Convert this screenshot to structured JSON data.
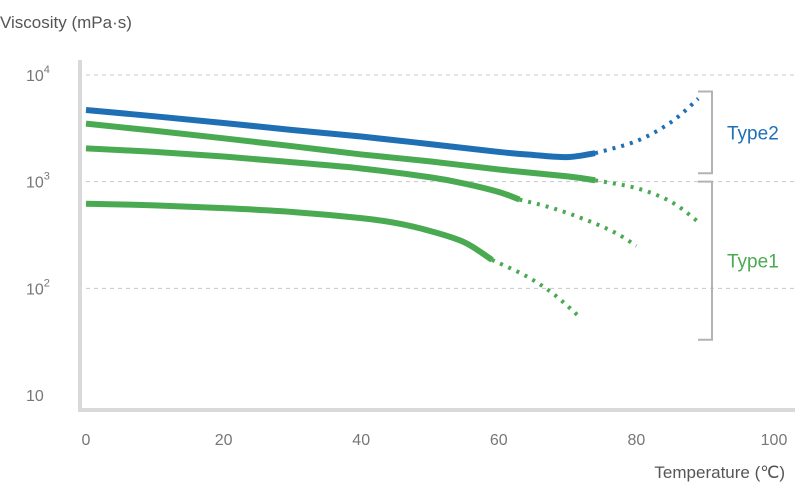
{
  "chart_data": {
    "type": "line",
    "ylabel": "Viscosity (mPa·s)",
    "xlabel": "Temperature (℃)",
    "xlim": [
      0,
      100
    ],
    "ylim_log10": [
      0.8,
      4.1
    ],
    "y_scale": "log",
    "grid": "horizontal dashed",
    "x_ticks": [
      "0",
      "20",
      "40",
      "60",
      "80",
      "100"
    ],
    "y_ticks": [
      {
        "base": "10",
        "exp": "4",
        "value": 10000
      },
      {
        "base": "10",
        "exp": "3",
        "value": 1000
      },
      {
        "base": "10",
        "exp": "2",
        "value": 100
      },
      {
        "base": "10",
        "exp": "",
        "value": 10
      }
    ],
    "colors": {
      "type2": "#1f6fb5",
      "type1": "#4aaa52"
    },
    "series": [
      {
        "group": "Type2",
        "solid": {
          "x": [
            0,
            10,
            20,
            30,
            40,
            50,
            60,
            65,
            70,
            74
          ],
          "y": [
            4700,
            4100,
            3550,
            3050,
            2650,
            2250,
            1900,
            1780,
            1700,
            1850
          ]
        },
        "dotted": {
          "x": [
            74,
            80,
            85,
            89
          ],
          "y": [
            1850,
            2400,
            3600,
            6000
          ]
        }
      },
      {
        "group": "Type1",
        "solid": {
          "x": [
            0,
            10,
            20,
            30,
            40,
            50,
            60,
            70,
            74
          ],
          "y": [
            3500,
            3000,
            2550,
            2150,
            1800,
            1550,
            1300,
            1120,
            1030
          ]
        },
        "dotted": {
          "x": [
            74,
            80,
            85,
            89
          ],
          "y": [
            1030,
            870,
            650,
            420
          ]
        }
      },
      {
        "group": "Type1",
        "solid": {
          "x": [
            0,
            10,
            20,
            30,
            40,
            50,
            55,
            60,
            63
          ],
          "y": [
            2050,
            1900,
            1720,
            1520,
            1330,
            1100,
            960,
            800,
            680
          ]
        },
        "dotted": {
          "x": [
            63,
            68,
            73,
            77,
            80
          ],
          "y": [
            680,
            560,
            430,
            330,
            250
          ]
        }
      },
      {
        "group": "Type1",
        "solid": {
          "x": [
            0,
            10,
            20,
            30,
            40,
            45,
            50,
            55,
            59
          ],
          "y": [
            620,
            600,
            565,
            520,
            455,
            410,
            345,
            270,
            185
          ]
        },
        "dotted": {
          "x": [
            59,
            64,
            68,
            72
          ],
          "y": [
            185,
            130,
            88,
            52
          ]
        }
      }
    ],
    "annotations": [
      {
        "label": "Type2",
        "color": "#1f6fb5",
        "ymin": 1200,
        "ymax": 7000
      },
      {
        "label": "Type1",
        "color": "#4aaa52",
        "ymin": 33,
        "ymax": 1000
      }
    ]
  }
}
